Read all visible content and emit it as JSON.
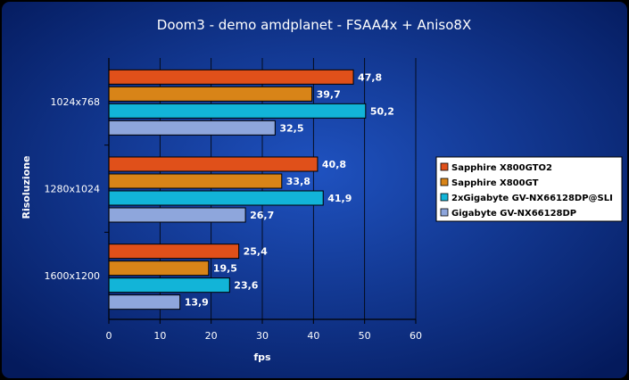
{
  "chart_data": {
    "type": "bar",
    "orientation": "horizontal",
    "title": "Doom3 - demo amdplanet - FSAA4x + Aniso8X",
    "xlabel": "fps",
    "ylabel": "Risoluzione",
    "xlim": [
      0,
      60
    ],
    "xticks": [
      "0",
      "10",
      "20",
      "30",
      "40",
      "50",
      "60"
    ],
    "grid": true,
    "legend_position": "right",
    "categories": [
      "1024x768",
      "1280x1024",
      "1600x1200"
    ],
    "series": [
      {
        "name": "Sapphire X800GTO2",
        "color": "#e0501a",
        "values": [
          47.8,
          40.8,
          25.4
        ],
        "labels": [
          "47,8",
          "40,8",
          "25,4"
        ]
      },
      {
        "name": "Sapphire X800GT",
        "color": "#d88418",
        "values": [
          39.7,
          33.8,
          19.5
        ],
        "labels": [
          "39,7",
          "33,8",
          "19,5"
        ]
      },
      {
        "name": "2xGigabyte GV-NX66128DP@SLI",
        "color": "#12b4d8",
        "values": [
          50.2,
          41.9,
          23.6
        ],
        "labels": [
          "50,2",
          "41,9",
          "23,6"
        ]
      },
      {
        "name": "Gigabyte GV-NX66128DP",
        "color": "#8ea6dc",
        "values": [
          32.5,
          26.7,
          13.9
        ],
        "labels": [
          "32,5",
          "26,7",
          "13,9"
        ]
      }
    ],
    "colors": {
      "background": "#0f3a96",
      "background_edge": "#041a5c",
      "text": "#ffffff",
      "legend_bg": "#ffffff",
      "legend_text": "#000000"
    }
  }
}
